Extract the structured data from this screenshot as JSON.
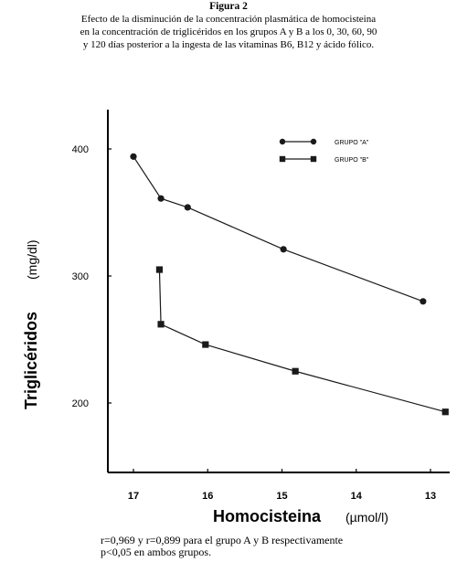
{
  "figure": {
    "title": "Figura 2",
    "caption_lines": [
      "Efecto de la disminución de la concentración plasmática de homocisteina",
      "en la concentración de triglicéridos en los grupos A y B  a los 0,  30,  60,  90",
      "y 120 días posterior a la ingesta de las vitaminas B6, B12 y ácido fólico."
    ],
    "footer_lines": [
      "r=0,969 y r=0,899 para el grupo A y B respectivamente",
      "p<0,05 en ambos grupos."
    ]
  },
  "chart_data": {
    "type": "line",
    "xlabel": "Homocisteina",
    "xlabel_unit": "(µmol/l)",
    "ylabel": "Triglicéridos",
    "ylabel_unit": "(mg/dl)",
    "xlim": [
      17.2,
      12.7
    ],
    "x_reversed": true,
    "ylim": [
      150,
      430
    ],
    "xticks": [
      17,
      16,
      15,
      14,
      13
    ],
    "xtick_labels": [
      "17",
      "16",
      "15",
      "14",
      "13"
    ],
    "yticks": [
      200,
      300,
      400
    ],
    "ytick_labels": [
      "200",
      "300",
      "400"
    ],
    "grid": false,
    "legend_position": "top-right",
    "series": [
      {
        "name": "GRUPO  \"A\"",
        "marker": "circle",
        "color": "#1a1a1a",
        "x": [
          17.0,
          16.63,
          16.27,
          14.98,
          13.1
        ],
        "y": [
          394,
          361,
          354,
          321,
          280
        ]
      },
      {
        "name": "GRUPO  \"B\"",
        "marker": "square",
        "color": "#1a1a1a",
        "x": [
          16.65,
          16.63,
          16.03,
          14.82,
          12.8
        ],
        "y": [
          305,
          262,
          246,
          225,
          193
        ]
      }
    ]
  }
}
